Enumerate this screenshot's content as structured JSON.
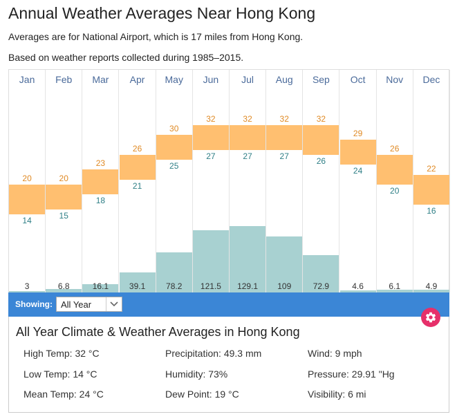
{
  "page": {
    "title": "Annual Weather Averages Near Hong Kong",
    "subtitle1": "Averages are for National Airport, which is 17 miles from Hong Kong.",
    "subtitle2": "Based on weather reports collected during 1985–2015."
  },
  "chart_data": {
    "type": "bar",
    "categories": [
      "Jan",
      "Feb",
      "Mar",
      "Apr",
      "May",
      "Jun",
      "Jul",
      "Aug",
      "Sep",
      "Oct",
      "Nov",
      "Dec"
    ],
    "series": [
      {
        "values": [
          20,
          20,
          23,
          26,
          30,
          32,
          32,
          32,
          32,
          29,
          26,
          22
        ]
      },
      {
        "values": [
          14,
          15,
          18,
          21,
          25,
          27,
          27,
          27,
          26,
          24,
          20,
          16
        ]
      },
      {
        "values": [
          "3",
          "6.8",
          "16.1",
          "39.1",
          "78.2",
          "121.5",
          "129.1",
          "109",
          "72.9",
          "4.6",
          "6.1",
          "4.9"
        ]
      }
    ]
  },
  "showing": {
    "label": "Showing:",
    "selected": "All Year",
    "options": [
      "All Year"
    ]
  },
  "summary": {
    "title": "All Year Climate & Weather Averages in Hong Kong",
    "stats": [
      "High Temp: 32 °C",
      "Low Temp: 14 °C",
      "Mean Temp: 24 °C",
      "Precipitation: 49.3 mm",
      "Humidity: 73%",
      "Dew Point: 19 °C",
      "Wind: 9 mph",
      "Pressure: 29.91 \"Hg",
      "Visibility: 6 mi"
    ]
  },
  "colors": {
    "temp_bar": "#ffbf70",
    "precip_bar": "#a8d1d1",
    "high_text": "#e08a25",
    "low_text": "#2f7f86",
    "showing_bar": "#3b86d6",
    "settings_button": "#e6306a"
  },
  "icons": {
    "settings": "gear-icon",
    "dropdown": "chevron-down-icon"
  }
}
